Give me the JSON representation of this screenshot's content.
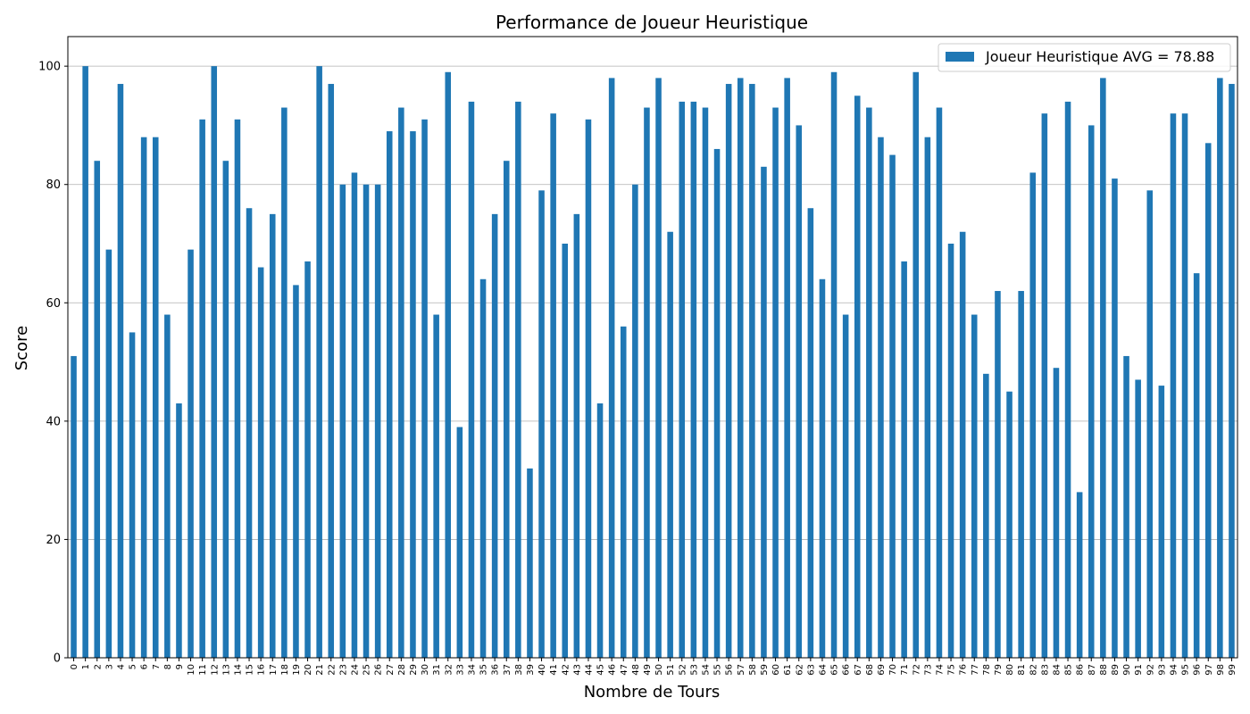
{
  "chart_data": {
    "type": "bar",
    "title": "Performance de Joueur Heuristique",
    "xlabel": "Nombre de Tours",
    "ylabel": "Score",
    "ylim": [
      0,
      105
    ],
    "yticks": [
      0,
      20,
      40,
      60,
      80,
      100
    ],
    "grid": "y",
    "legend_placement": "top-right",
    "categories": [
      "0",
      "1",
      "2",
      "3",
      "4",
      "5",
      "6",
      "7",
      "8",
      "9",
      "10",
      "11",
      "12",
      "13",
      "14",
      "15",
      "16",
      "17",
      "18",
      "19",
      "20",
      "21",
      "22",
      "23",
      "24",
      "25",
      "26",
      "27",
      "28",
      "29",
      "30",
      "31",
      "32",
      "33",
      "34",
      "35",
      "36",
      "37",
      "38",
      "39",
      "40",
      "41",
      "42",
      "43",
      "44",
      "45",
      "46",
      "47",
      "48",
      "49",
      "50",
      "51",
      "52",
      "53",
      "54",
      "55",
      "56",
      "57",
      "58",
      "59",
      "60",
      "61",
      "62",
      "63",
      "64",
      "65",
      "66",
      "67",
      "68",
      "69",
      "70",
      "71",
      "72",
      "73",
      "74",
      "75",
      "76",
      "77",
      "78",
      "79",
      "80",
      "81",
      "82",
      "83",
      "84",
      "85",
      "86",
      "87",
      "88",
      "89",
      "90",
      "91",
      "92",
      "93",
      "94",
      "95",
      "96",
      "97",
      "98",
      "99"
    ],
    "series": [
      {
        "name": "Joueur Heuristique AVG = 78.88",
        "color": "#1f77b4",
        "values": [
          51,
          100,
          84,
          69,
          97,
          55,
          88,
          88,
          58,
          43,
          69,
          91,
          100,
          84,
          91,
          76,
          66,
          75,
          93,
          63,
          67,
          100,
          97,
          80,
          82,
          80,
          80,
          89,
          93,
          89,
          91,
          58,
          99,
          39,
          94,
          64,
          75,
          84,
          94,
          32,
          79,
          92,
          70,
          75,
          91,
          43,
          98,
          56,
          80,
          93,
          98,
          72,
          94,
          94,
          93,
          86,
          97,
          98,
          97,
          83,
          93,
          98,
          90,
          76,
          64,
          99,
          58,
          95,
          93,
          88,
          85,
          67,
          99,
          88,
          93,
          70,
          72,
          58,
          48,
          62,
          45,
          62,
          82,
          92,
          49,
          94,
          28,
          90,
          98,
          81,
          51,
          47,
          79,
          46,
          92,
          92,
          65,
          87,
          98,
          97
        ]
      }
    ]
  }
}
